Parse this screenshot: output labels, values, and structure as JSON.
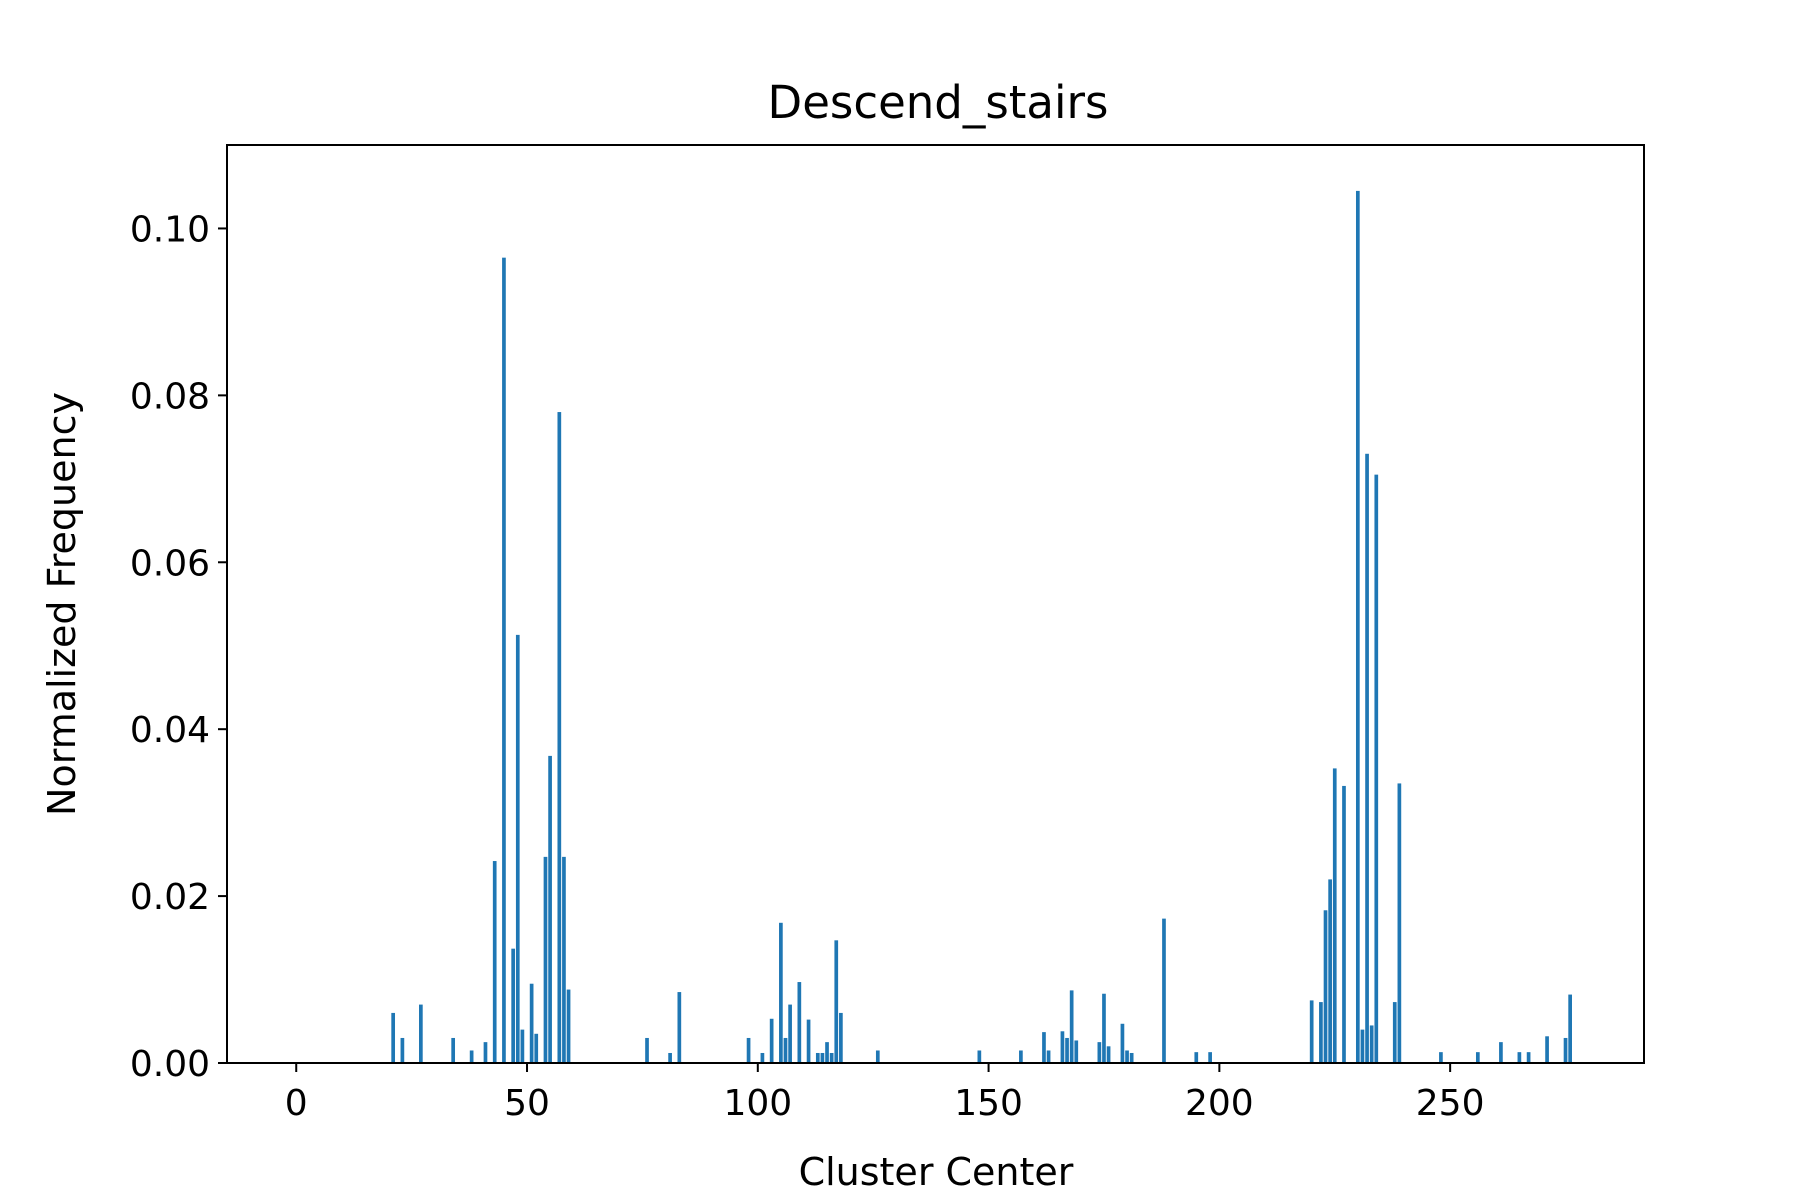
{
  "chart_data": {
    "type": "bar",
    "title": "Descend_stairs",
    "xlabel": "Cluster Center",
    "ylabel": "Normalized Frequency",
    "xlim": [
      -15,
      292
    ],
    "ylim": [
      0,
      0.11
    ],
    "xticks": [
      0,
      50,
      100,
      150,
      200,
      250
    ],
    "xtick_labels": [
      "0",
      "50",
      "100",
      "150",
      "200",
      "250"
    ],
    "yticks": [
      0,
      0.02,
      0.04,
      0.06,
      0.08,
      0.1
    ],
    "ytick_labels": [
      "0.00",
      "0.02",
      "0.04",
      "0.06",
      "0.08",
      "0.10"
    ],
    "grid": false,
    "bar_color": "#1f77b4",
    "x": [
      21,
      23,
      27,
      34,
      38,
      41,
      43,
      45,
      47,
      48,
      49,
      51,
      52,
      54,
      55,
      57,
      58,
      59,
      76,
      81,
      83,
      98,
      101,
      103,
      105,
      106,
      107,
      109,
      111,
      113,
      114,
      115,
      116,
      117,
      118,
      126,
      148,
      157,
      162,
      163,
      166,
      167,
      168,
      169,
      174,
      175,
      176,
      179,
      180,
      181,
      188,
      195,
      198,
      220,
      222,
      223,
      224,
      225,
      227,
      230,
      231,
      232,
      233,
      234,
      238,
      239,
      248,
      256,
      261,
      265,
      267,
      271,
      275,
      276
    ],
    "values": [
      0.006,
      0.003,
      0.007,
      0.003,
      0.0015,
      0.0025,
      0.0242,
      0.0965,
      0.0137,
      0.0513,
      0.004,
      0.0095,
      0.0035,
      0.0247,
      0.0368,
      0.078,
      0.0247,
      0.0088,
      0.003,
      0.0012,
      0.0085,
      0.003,
      0.0012,
      0.0053,
      0.0168,
      0.003,
      0.007,
      0.0097,
      0.0052,
      0.0012,
      0.0012,
      0.0025,
      0.0012,
      0.0147,
      0.006,
      0.0015,
      0.0015,
      0.0015,
      0.0037,
      0.0015,
      0.0038,
      0.003,
      0.0087,
      0.0027,
      0.0025,
      0.0083,
      0.002,
      0.0047,
      0.0015,
      0.0012,
      0.0173,
      0.0013,
      0.0013,
      0.0075,
      0.0073,
      0.0183,
      0.022,
      0.0353,
      0.0332,
      0.1045,
      0.004,
      0.073,
      0.0045,
      0.0705,
      0.0073,
      0.0335,
      0.0013,
      0.0013,
      0.0025,
      0.0013,
      0.0013,
      0.0032,
      0.003,
      0.0082
    ]
  }
}
